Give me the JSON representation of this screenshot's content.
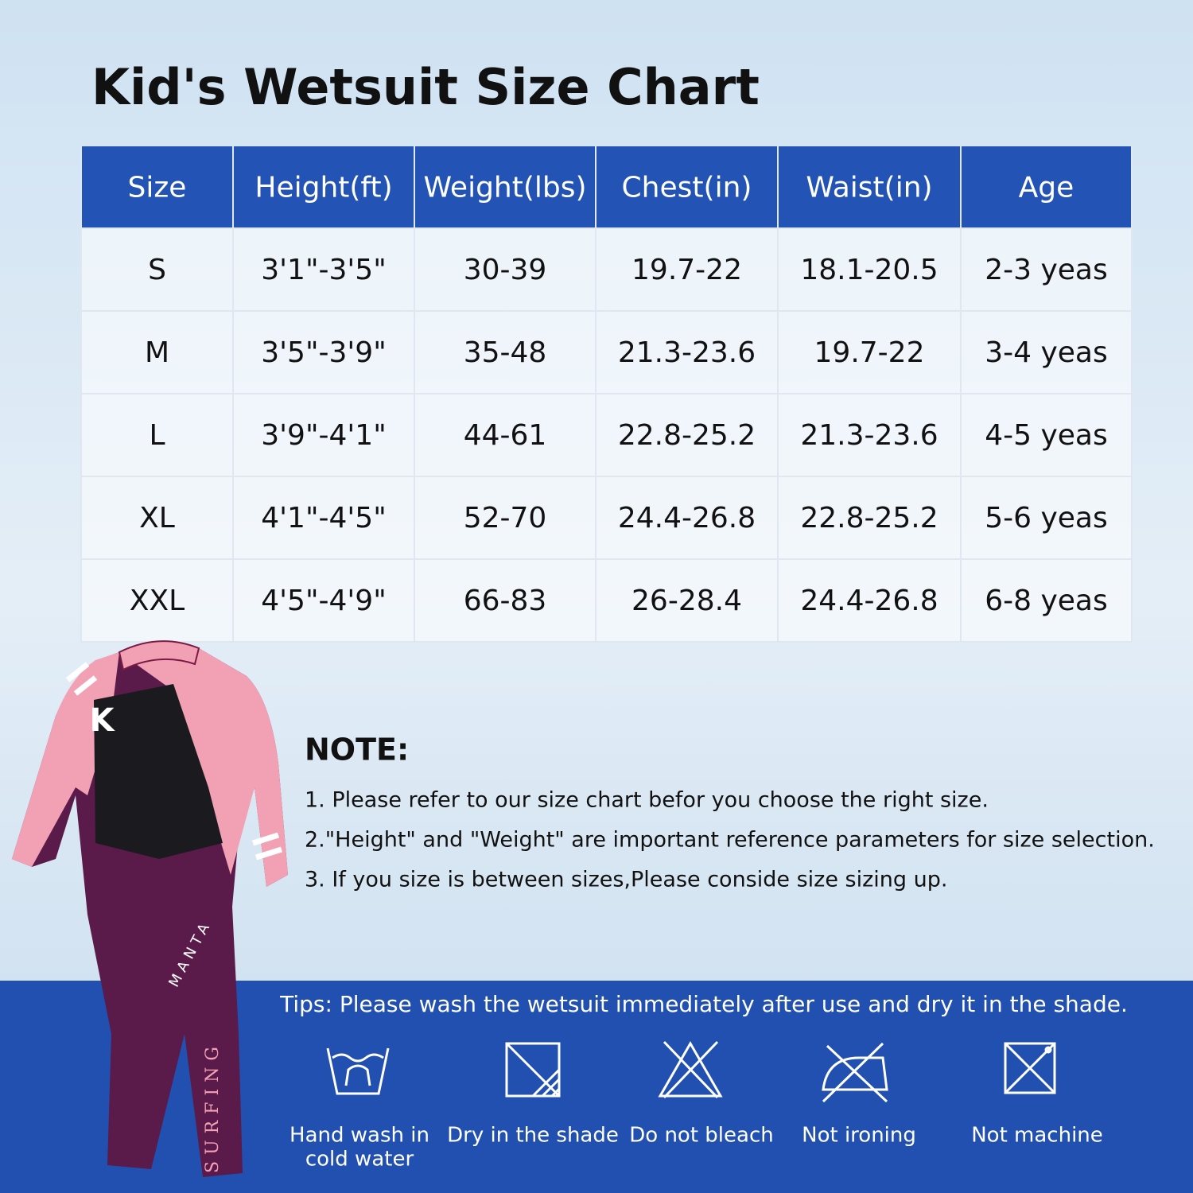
{
  "title": "Kid's Wetsuit Size Chart",
  "table": {
    "header": [
      "Size",
      "Height(ft)",
      "Weight(lbs)",
      "Chest(in)",
      "Waist(in)",
      "Age"
    ],
    "rows": [
      [
        "S",
        "3'1\"-3'5\"",
        "30-39",
        "19.7-22",
        "18.1-20.5",
        "2-3 yeas"
      ],
      [
        "M",
        "3'5\"-3'9\"",
        "35-48",
        "21.3-23.6",
        "19.7-22",
        "3-4 yeas"
      ],
      [
        "L",
        "3'9\"-4'1\"",
        "44-61",
        "22.8-25.2",
        "21.3-23.6",
        "4-5 yeas"
      ],
      [
        "XL",
        "4'1\"-4'5\"",
        "52-70",
        "24.4-26.8",
        "22.8-25.2",
        "5-6 yeas"
      ],
      [
        "XXL",
        "4'5\"-4'9\"",
        "66-83",
        "26-28.4",
        "24.4-26.8",
        "6-8 yeas"
      ]
    ]
  },
  "note": {
    "title": "NOTE:",
    "items": [
      "1. Please refer to our size chart befor you choose the right size.",
      "2.\"Height\" and \"Weight\" are important reference parameters for size selection.",
      "3. If you size is between sizes,Please conside size sizing up."
    ]
  },
  "tips": "Tips: Please wash the wetsuit immediately after use and dry it in the shade.",
  "care": [
    [
      "Hand wash in",
      "cold water"
    ],
    [
      "Dry in the shade"
    ],
    [
      "Do not bleach"
    ],
    [
      "Not ironing"
    ],
    [
      "Not machine"
    ]
  ],
  "wetsuit": {
    "logo": "K",
    "brand": "MANTA",
    "print": "SURFING"
  }
}
